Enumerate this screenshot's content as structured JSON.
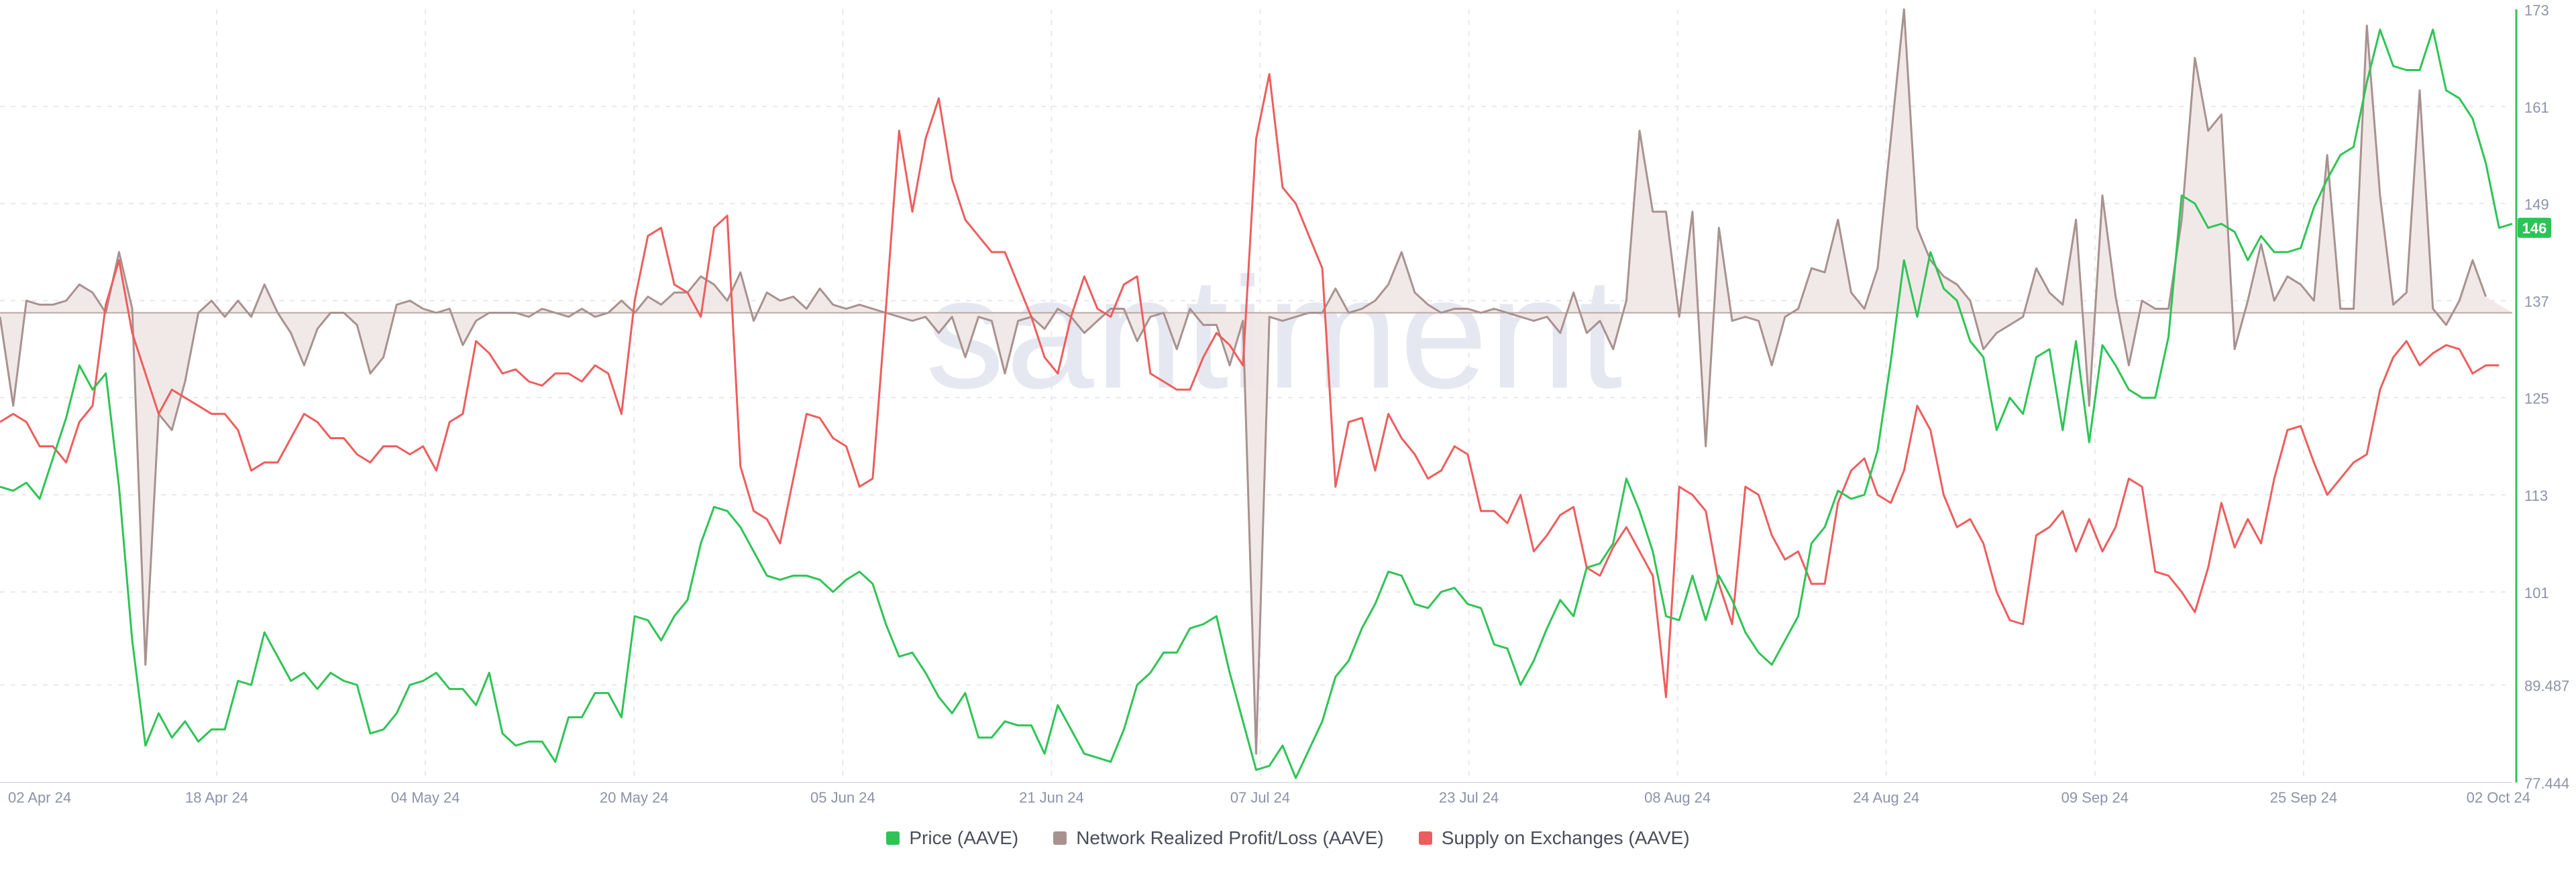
{
  "watermark": "santiment",
  "colors": {
    "price": "#2ec455",
    "realized": "#a8928f",
    "realized_fill": "#efe7e5",
    "supply": "#ee5d5d",
    "grid": "#e6e8ee",
    "axis_text": "#8b93a7",
    "right_axis": "#2ec455"
  },
  "chart_data": {
    "type": "line",
    "x_ticks": [
      "02 Apr 24",
      "18 Apr 24",
      "04 May 24",
      "20 May 24",
      "05 Jun 24",
      "21 Jun 24",
      "07 Jul 24",
      "23 Jul 24",
      "08 Aug 24",
      "24 Aug 24",
      "09 Sep 24",
      "25 Sep 24",
      "02 Oct 24"
    ],
    "y_ticks": [
      "173",
      "161",
      "149",
      "137",
      "125",
      "113",
      "101",
      "89.487",
      "77.444"
    ],
    "ylim": [
      77.444,
      173
    ],
    "current_price_label": "146",
    "legend": [
      {
        "name": "Price (AAVE)",
        "color": "#2ec455"
      },
      {
        "name": "Network Realized Profit/Loss (AAVE)",
        "color": "#a8928f"
      },
      {
        "name": "Supply on Exchanges (AAVE)",
        "color": "#ee5d5d"
      }
    ],
    "series": [
      {
        "name": "Price (AAVE)",
        "values": [
          114,
          113.5,
          114.5,
          112.5,
          117.5,
          122.5,
          129,
          126,
          128,
          114,
          95,
          82,
          86,
          83,
          85,
          82.5,
          84,
          84,
          90,
          89.5,
          96,
          93,
          90,
          91,
          89,
          91,
          90,
          89.5,
          83.5,
          84,
          86,
          89.5,
          90,
          91,
          89,
          89,
          87,
          91,
          83.5,
          82,
          82.5,
          82.5,
          80,
          85.5,
          85.5,
          88.5,
          88.5,
          85.5,
          98,
          97.5,
          95,
          98,
          100,
          107,
          111.5,
          111,
          109,
          106,
          103,
          102.5,
          103,
          103,
          102.5,
          101,
          102.5,
          103.5,
          102,
          97,
          93,
          93.5,
          91,
          88,
          86,
          88.5,
          83,
          83,
          85,
          84.5,
          84.5,
          81,
          87,
          84,
          81,
          80.5,
          80,
          84,
          89.5,
          91,
          93.5,
          93.5,
          96.5,
          97,
          98,
          91,
          85,
          79,
          79.5,
          82,
          78,
          81.5,
          85,
          90.5,
          92.5,
          96.5,
          99.5,
          103.5,
          103,
          99.5,
          99,
          101,
          101.5,
          99.5,
          99,
          94.5,
          94,
          89.5,
          92.5,
          96.5,
          100,
          98,
          104,
          104.5,
          107,
          115,
          111,
          106,
          98,
          97.5,
          103,
          97.5,
          103,
          100,
          96,
          93.5,
          92,
          95,
          98,
          107,
          109,
          113.5,
          112.5,
          113,
          118.5,
          129.5,
          142,
          135,
          143,
          138.5,
          137,
          132,
          130,
          121,
          125,
          123,
          130,
          131,
          121,
          132,
          119.5,
          131.5,
          129,
          126,
          125,
          125,
          132.5,
          150,
          149,
          146,
          146.5,
          145.5,
          142,
          145,
          143,
          143,
          143.5,
          148.5,
          152,
          155,
          156,
          164,
          170.5,
          166,
          165.5,
          165.5,
          170.5,
          163,
          162,
          159.5,
          154,
          146,
          146.5
        ]
      },
      {
        "name": "Network Realized Profit/Loss (AAVE)",
        "values": [
          135,
          124,
          137,
          136.5,
          136.5,
          137,
          139,
          138,
          135.5,
          143,
          136,
          92,
          123,
          121,
          127,
          135.5,
          137,
          135,
          137,
          135,
          139,
          135.5,
          133,
          129,
          133.5,
          135.5,
          135.5,
          134,
          128,
          130,
          136.5,
          137,
          136,
          135.5,
          136,
          131.5,
          134.5,
          135.5,
          135.5,
          135.5,
          135,
          136,
          135.5,
          135,
          136,
          135,
          135.5,
          137,
          135.5,
          137.5,
          136.5,
          138,
          138,
          140,
          139,
          137,
          140.5,
          134.5,
          138,
          137,
          137.5,
          136,
          138.5,
          136.5,
          136,
          136.5,
          136,
          135.5,
          135,
          134.5,
          135,
          133,
          135,
          130,
          135,
          134.5,
          128,
          134.5,
          135,
          133.5,
          136,
          135,
          133,
          134.5,
          136,
          136,
          132,
          135,
          135.5,
          131,
          136,
          134,
          134,
          129,
          134.5,
          81,
          135,
          134.5,
          135,
          135.5,
          135.5,
          138.5,
          135.5,
          136,
          137,
          139,
          143,
          138,
          136.5,
          135.5,
          136,
          136,
          135.5,
          136,
          135.5,
          135,
          134.5,
          135,
          133,
          138,
          133,
          134.5,
          131,
          137,
          158,
          148,
          148,
          135,
          148,
          119,
          146,
          134.5,
          135,
          134.5,
          129,
          135,
          136,
          141,
          140.5,
          147,
          138,
          136,
          141,
          157,
          173,
          146,
          142,
          140,
          139,
          137,
          131,
          133,
          134,
          135,
          141,
          138,
          136.5,
          147,
          124,
          150,
          137.5,
          129,
          137,
          136,
          136,
          147,
          167,
          158,
          160,
          131,
          137,
          144,
          137,
          140,
          139,
          137,
          155,
          136,
          136,
          171,
          150,
          136.5,
          138,
          163,
          136,
          134,
          137,
          142,
          137.5
        ]
      },
      {
        "name": "Supply on Exchanges (AAVE)",
        "values": [
          122,
          123,
          122,
          119,
          119,
          117,
          122,
          124,
          136.5,
          142,
          133,
          128,
          123,
          126,
          125,
          124,
          123,
          123,
          121,
          116,
          117,
          117,
          120,
          123,
          122,
          120,
          120,
          118,
          117,
          119,
          119,
          118,
          119,
          116,
          122,
          123,
          132,
          130.5,
          128,
          128.5,
          127,
          126.5,
          128,
          128,
          127,
          129,
          128,
          123,
          137,
          145,
          146,
          139,
          138,
          135,
          146,
          147.5,
          116.5,
          111,
          110,
          107,
          115,
          123,
          122.5,
          120,
          119,
          114,
          115,
          136,
          158,
          148,
          157,
          162,
          152,
          147,
          145,
          143,
          143,
          139,
          135,
          130,
          128,
          135,
          140,
          136,
          135,
          139,
          140,
          128,
          127,
          126,
          126,
          130,
          133,
          131.5,
          129,
          157,
          165,
          151,
          149,
          145,
          141,
          114,
          122,
          122.5,
          116,
          123,
          120,
          118,
          115,
          116,
          119,
          118,
          111,
          111,
          109.5,
          113,
          106,
          108,
          110.5,
          111.5,
          104,
          103,
          106.5,
          109,
          106,
          103,
          88,
          114,
          113,
          111,
          102,
          97,
          114,
          113,
          108,
          105,
          106,
          102,
          102,
          112,
          116,
          117.5,
          113,
          112,
          116,
          124,
          121,
          113,
          109,
          110,
          107,
          101,
          97.5,
          97,
          108,
          109,
          111,
          106,
          110,
          106,
          109,
          115,
          114,
          103.5,
          103,
          101,
          98.5,
          104,
          112,
          106.5,
          110,
          107,
          115,
          121,
          121.5,
          117,
          113,
          115,
          117,
          118,
          126,
          130,
          132,
          129,
          130.5,
          131.5,
          131,
          128,
          129,
          129
        ]
      }
    ]
  }
}
